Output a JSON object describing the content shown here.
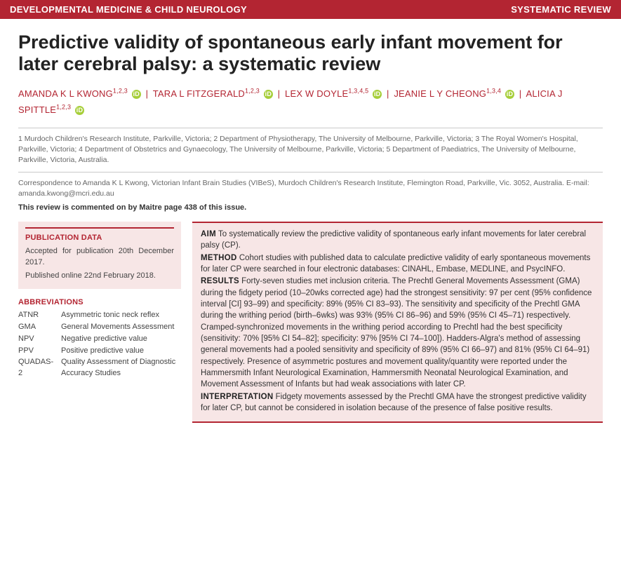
{
  "header": {
    "journal": "DEVELOPMENTAL MEDICINE & CHILD NEUROLOGY",
    "article_type": "SYSTEMATIC REVIEW",
    "bar_color": "#b32532",
    "text_color": "#ffffff"
  },
  "title": "Predictive validity of spontaneous early infant movement for later cerebral palsy: a systematic review",
  "authors": [
    {
      "name": "AMANDA K L KWONG",
      "affil": "1,2,3",
      "orcid": true
    },
    {
      "name": "TARA L FITZGERALD",
      "affil": "1,2,3",
      "orcid": true
    },
    {
      "name": "LEX W DOYLE",
      "affil": "1,3,4,5",
      "orcid": true
    },
    {
      "name": "JEANIE L Y CHEONG",
      "affil": "1,3,4",
      "orcid": true
    },
    {
      "name": "ALICIA J SPITTLE",
      "affil": "1,2,3",
      "orcid": true
    }
  ],
  "affiliations": "1 Murdoch Children's Research Institute, Parkville, Victoria; 2 Department of Physiotherapy, The University of Melbourne, Parkville, Victoria; 3 The Royal Women's Hospital, Parkville, Victoria; 4 Department of Obstetrics and Gynaecology, The University of Melbourne, Parkville, Victoria; 5 Department of Paediatrics, The University of Melbourne, Parkville, Victoria, Australia.",
  "correspondence": "Correspondence to Amanda K L Kwong, Victorian Infant Brain Studies (VIBeS), Murdoch Children's Research Institute, Flemington Road, Parkville, Vic. 3052, Australia. E-mail: amanda.kwong@mcri.edu.au",
  "commentary": "This review is commented on by Maitre page 438 of this issue.",
  "publication_data": {
    "heading": "PUBLICATION DATA",
    "accepted": "Accepted for publication 20th December 2017.",
    "published": "Published online 22nd February 2018."
  },
  "abbreviations": {
    "heading": "ABBREVIATIONS",
    "items": [
      {
        "abbr": "ATNR",
        "def": "Asymmetric tonic neck reflex"
      },
      {
        "abbr": "GMA",
        "def": "General Movements Assessment"
      },
      {
        "abbr": "NPV",
        "def": "Negative predictive value"
      },
      {
        "abbr": "PPV",
        "def": "Positive predictive value"
      },
      {
        "abbr": "QUADAS-2",
        "def": "Quality Assessment of Diagnostic Accuracy Studies"
      }
    ]
  },
  "abstract": {
    "aim_label": "AIM",
    "aim": " To systematically review the predictive validity of spontaneous early infant movements for later cerebral palsy (CP).",
    "method_label": "METHOD",
    "method": " Cohort studies with published data to calculate predictive validity of early spontaneous movements for later CP were searched in four electronic databases: CINAHL, Embase, MEDLINE, and PsycINFO.",
    "results_label": "RESULTS",
    "results": " Forty-seven studies met inclusion criteria. The Prechtl General Movements Assessment (GMA) during the fidgety period (10–20wks corrected age) had the strongest sensitivity: 97 per cent (95% confidence interval [CI] 93–99) and specificity: 89% (95% CI 83–93). The sensitivity and specificity of the Prechtl GMA during the writhing period (birth–6wks) was 93% (95% CI 86–96) and 59% (95% CI 45–71) respectively. Cramped-synchronized movements in the writhing period according to Prechtl had the best specificity (sensitivity: 70% [95% CI 54–82]; specificity: 97% [95% CI 74–100]). Hadders-Algra's method of assessing general movements had a pooled sensitivity and specificity of 89% (95% CI 66–97) and 81% (95% CI 64–91) respectively. Presence of asymmetric postures and movement quality/quantity were reported under the Hammersmith Infant Neurological Examination, Hammersmith Neonatal Neurological Examination, and Movement Assessment of Infants but had weak associations with later CP.",
    "interpretation_label": "INTERPRETATION",
    "interpretation": " Fidgety movements assessed by the Prechtl GMA have the strongest predictive validity for later CP, but cannot be considered in isolation because of the presence of false positive results."
  },
  "colors": {
    "accent": "#b32532",
    "abstract_bg": "#f7e6e6",
    "orcid_bg": "#a6ce39"
  }
}
